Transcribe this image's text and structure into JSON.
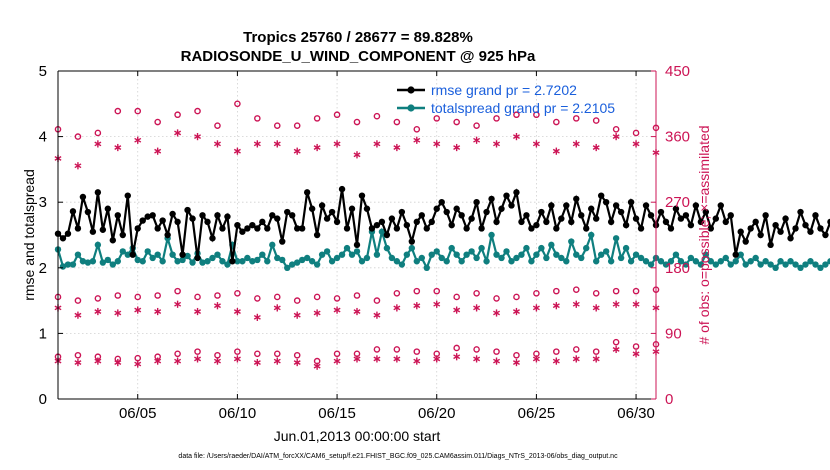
{
  "chart_data": {
    "type": "line",
    "title": "Tropics 25760 / 28677 = 89.828%",
    "subtitle": "RADIOSONDE_U_WIND_COMPONENT @ 925 hPa",
    "xlabel": "Jun.01,2013 00:00:00 start",
    "ylabel_left": "rmse and totalspread",
    "ylabel_right": "# of obs: o=possible; ×=assimilated",
    "xlim": [
      1,
      31
    ],
    "ylim_left": [
      0,
      5
    ],
    "ylim_right": [
      0,
      450
    ],
    "x_ticks": [
      5,
      10,
      15,
      20,
      25,
      30
    ],
    "x_tick_labels": [
      "06/05",
      "06/10",
      "06/15",
      "06/20",
      "06/25",
      "06/30"
    ],
    "y_ticks_left": [
      0,
      1,
      2,
      3,
      4,
      5
    ],
    "y_tick_labels_left": [
      "0",
      "1",
      "2",
      "3",
      "4",
      "5"
    ],
    "y_ticks_right": [
      0,
      90,
      180,
      270,
      360,
      450
    ],
    "y_tick_labels_right": [
      "0",
      "90",
      "180",
      "270",
      "360",
      "450"
    ],
    "legend": {
      "location": "top-right",
      "entries": [
        "rmse grand pr = 2.7202",
        "totalspread grand pr = 2.2105"
      ]
    },
    "colors": {
      "rmse": "#000000",
      "totalspread": "#0f7f7f",
      "obs": "#cc1455",
      "right_axis": "#cc1455",
      "legend_text": "#1a5fdc"
    },
    "series": [
      {
        "name": "rmse",
        "x_start": 1.0,
        "x_step": 0.25,
        "values": [
          2.52,
          2.45,
          2.52,
          2.86,
          2.6,
          3.08,
          2.85,
          2.55,
          3.15,
          2.58,
          2.9,
          2.42,
          2.8,
          2.5,
          3.1,
          2.2,
          2.6,
          2.72,
          2.78,
          2.8,
          2.6,
          2.72,
          2.5,
          2.82,
          2.7,
          2.2,
          2.88,
          2.75,
          2.15,
          2.8,
          2.7,
          2.45,
          2.8,
          2.6,
          2.78,
          2.1,
          2.65,
          2.55,
          2.6,
          2.65,
          2.6,
          2.7,
          2.6,
          2.8,
          2.75,
          2.4,
          2.85,
          2.8,
          2.6,
          2.6,
          3.15,
          2.9,
          2.5,
          2.95,
          2.75,
          2.85,
          2.7,
          3.2,
          2.6,
          2.9,
          2.35,
          3.1,
          2.9,
          2.6,
          2.65,
          2.7,
          2.5,
          2.75,
          2.6,
          2.85,
          2.65,
          2.4,
          2.7,
          2.8,
          2.6,
          2.7,
          2.9,
          3.0,
          2.85,
          2.65,
          2.9,
          2.8,
          2.6,
          2.75,
          3.0,
          2.6,
          2.85,
          3.05,
          2.7,
          2.9,
          3.1,
          2.95,
          3.15,
          2.7,
          2.8,
          2.6,
          2.65,
          2.85,
          2.7,
          2.95,
          2.6,
          2.75,
          2.95,
          2.7,
          3.05,
          2.8,
          2.6,
          2.9,
          2.75,
          3.1,
          3.0,
          2.7,
          2.95,
          2.85,
          2.65,
          3.0,
          2.75,
          2.6,
          2.95,
          2.8,
          2.65,
          2.85,
          2.7,
          2.6,
          2.9,
          2.75,
          2.8,
          2.65,
          2.95,
          2.7,
          2.85,
          2.6,
          2.75,
          2.95,
          2.7,
          2.8,
          2.2,
          2.55,
          2.4,
          2.6,
          2.7,
          2.5,
          2.8,
          2.35,
          2.65,
          2.55,
          2.75,
          2.45,
          2.6,
          2.85,
          2.65,
          2.55,
          2.8,
          2.6,
          2.5,
          2.7,
          2.45,
          2.3,
          2.6,
          2.4,
          2.65,
          2.85,
          2.75
        ],
        "legend_label": "rmse grand pr = 2.7202"
      },
      {
        "name": "totalspread",
        "x_start": 1.0,
        "x_step": 0.25,
        "values": [
          2.28,
          2.02,
          2.05,
          2.05,
          2.2,
          2.1,
          2.08,
          2.1,
          2.35,
          2.08,
          2.12,
          2.05,
          2.1,
          2.25,
          2.2,
          2.3,
          2.12,
          2.1,
          2.25,
          2.15,
          2.2,
          2.1,
          2.45,
          2.2,
          2.1,
          2.12,
          2.18,
          2.08,
          2.22,
          2.08,
          2.1,
          2.15,
          2.2,
          2.1,
          2.05,
          2.35,
          2.1,
          2.1,
          2.15,
          2.1,
          2.12,
          2.2,
          2.1,
          2.35,
          2.15,
          2.12,
          2.0,
          2.05,
          2.08,
          2.12,
          2.15,
          2.1,
          2.05,
          2.2,
          2.25,
          2.1,
          2.15,
          2.2,
          2.3,
          2.2,
          2.25,
          2.1,
          2.15,
          2.55,
          2.2,
          2.55,
          2.3,
          2.15,
          2.1,
          2.05,
          2.2,
          2.3,
          2.1,
          2.15,
          2.0,
          2.2,
          2.25,
          2.15,
          2.1,
          2.3,
          2.2,
          2.1,
          2.2,
          2.25,
          2.15,
          2.3,
          2.1,
          2.5,
          2.2,
          2.15,
          2.25,
          2.1,
          2.15,
          2.2,
          2.3,
          2.1,
          2.2,
          2.3,
          2.15,
          2.35,
          2.2,
          2.15,
          2.1,
          2.4,
          2.2,
          2.15,
          2.3,
          2.5,
          2.1,
          2.2,
          2.25,
          2.1,
          2.45,
          2.15,
          2.3,
          2.1,
          2.2,
          2.15,
          2.1,
          2.05,
          2.15,
          2.1,
          2.05,
          2.1,
          2.2,
          2.1,
          2.05,
          2.15,
          2.1,
          2.05,
          2.2,
          2.1,
          2.05,
          2.1,
          2.15,
          2.05,
          2.1,
          2.2,
          2.05,
          2.1,
          2.15,
          2.05,
          2.1,
          2.05,
          2.0,
          2.1,
          2.05,
          2.1,
          2.05,
          2.0,
          2.05,
          2.1,
          2.05,
          2.0,
          2.05,
          2.1,
          2.05,
          2.0,
          2.05,
          2.1,
          2.05,
          2.0,
          2.05,
          2.05
        ],
        "legend_label": "totalspread grand pr = 2.2105"
      },
      {
        "name": "obs possible (00Z)",
        "marker": "o",
        "axis": "right",
        "x": [
          1,
          2,
          3,
          4,
          5,
          6,
          7,
          8,
          9,
          10,
          11,
          12,
          13,
          14,
          15,
          16,
          17,
          18,
          19,
          20,
          21,
          22,
          23,
          24,
          25,
          26,
          27,
          28,
          29,
          30,
          31
        ],
        "values": [
          370,
          360,
          365,
          395,
          395,
          380,
          390,
          395,
          375,
          405,
          385,
          375,
          375,
          385,
          390,
          380,
          388,
          380,
          370,
          385,
          380,
          375,
          385,
          390,
          390,
          380,
          385,
          382,
          370,
          365,
          372
        ]
      },
      {
        "name": "obs assimilated (00Z)",
        "marker": "*",
        "axis": "right",
        "x": [
          1,
          2,
          3,
          4,
          5,
          6,
          7,
          8,
          9,
          10,
          11,
          12,
          13,
          14,
          15,
          16,
          17,
          18,
          19,
          20,
          21,
          22,
          23,
          24,
          25,
          26,
          27,
          28,
          29,
          30,
          31
        ],
        "values": [
          330,
          320,
          350,
          345,
          355,
          340,
          365,
          360,
          350,
          340,
          350,
          350,
          340,
          345,
          350,
          335,
          350,
          345,
          355,
          350,
          345,
          355,
          350,
          360,
          350,
          340,
          350,
          345,
          360,
          350,
          338
        ]
      },
      {
        "name": "obs possible (12Z)",
        "marker": "o",
        "axis": "right",
        "x": [
          1,
          2,
          3,
          4,
          5,
          6,
          7,
          8,
          9,
          10,
          11,
          12,
          13,
          14,
          15,
          16,
          17,
          18,
          19,
          20,
          21,
          22,
          23,
          24,
          25,
          26,
          27,
          28,
          29,
          30,
          31
        ],
        "values": [
          140,
          135,
          138,
          142,
          140,
          142,
          148,
          140,
          142,
          145,
          138,
          140,
          135,
          140,
          138,
          142,
          135,
          145,
          148,
          148,
          140,
          145,
          138,
          140,
          145,
          148,
          150,
          145,
          148,
          148,
          150
        ]
      },
      {
        "name": "obs assimilated (12Z)",
        "marker": "*",
        "axis": "right",
        "x": [
          1,
          2,
          3,
          4,
          5,
          6,
          7,
          8,
          9,
          10,
          11,
          12,
          13,
          14,
          15,
          16,
          17,
          18,
          19,
          20,
          21,
          22,
          23,
          24,
          25,
          26,
          27,
          28,
          29,
          30,
          31
        ],
        "values": [
          125,
          115,
          120,
          118,
          122,
          120,
          130,
          120,
          128,
          120,
          112,
          125,
          115,
          118,
          122,
          120,
          115,
          125,
          128,
          130,
          122,
          125,
          118,
          120,
          125,
          128,
          130,
          125,
          130,
          130,
          125
        ]
      },
      {
        "name": "obs possible (low)",
        "marker": "o",
        "axis": "right",
        "x": [
          1,
          2,
          3,
          4,
          5,
          6,
          7,
          8,
          9,
          10,
          11,
          12,
          13,
          14,
          15,
          16,
          17,
          18,
          19,
          20,
          21,
          22,
          23,
          24,
          25,
          26,
          27,
          28,
          29,
          30,
          31
        ],
        "values": [
          58,
          60,
          58,
          55,
          56,
          58,
          62,
          65,
          60,
          65,
          62,
          62,
          60,
          52,
          62,
          62,
          68,
          68,
          65,
          62,
          70,
          68,
          65,
          60,
          62,
          65,
          68,
          65,
          78,
          72,
          75
        ]
      },
      {
        "name": "obs assimilated (low)",
        "marker": "*",
        "axis": "right",
        "x": [
          1,
          2,
          3,
          4,
          5,
          6,
          7,
          8,
          9,
          10,
          11,
          12,
          13,
          14,
          15,
          16,
          17,
          18,
          19,
          20,
          21,
          22,
          23,
          24,
          25,
          26,
          27,
          28,
          29,
          30,
          31
        ],
        "values": [
          52,
          50,
          52,
          50,
          48,
          52,
          52,
          55,
          52,
          55,
          50,
          52,
          50,
          45,
          52,
          55,
          55,
          55,
          52,
          55,
          58,
          55,
          52,
          50,
          55,
          52,
          55,
          55,
          68,
          62,
          65
        ]
      }
    ]
  },
  "footnote": "data file: /Users/raeder/DAI/ATM_forcXX/CAM6_setup/f.e21.FHIST_BGC.f09_025.CAM6assim.011/Diags_NTrS_2013-06/obs_diag_output.nc"
}
